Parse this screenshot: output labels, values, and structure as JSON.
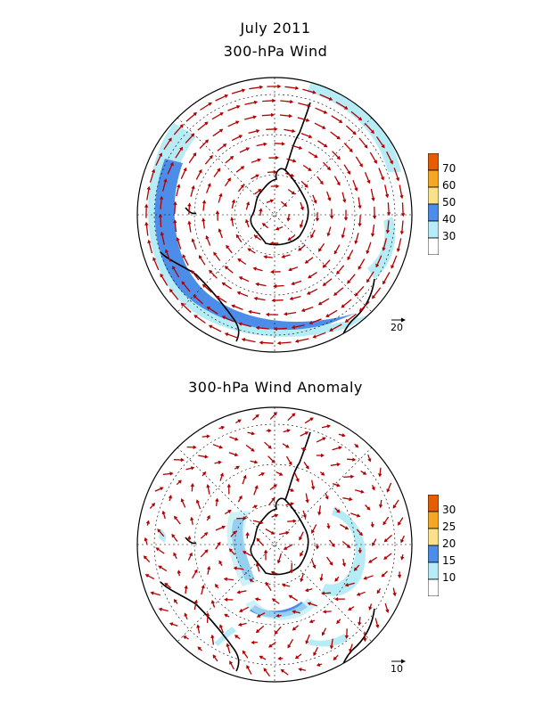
{
  "titles": {
    "date": "July 2011",
    "panel1": "300-hPa Wind",
    "panel2": "300-hPa Wind Anomaly"
  },
  "colorbars": {
    "panel1": {
      "labels": [
        "70",
        "60",
        "50",
        "40",
        "30"
      ],
      "colors": [
        "#e65c00",
        "#f5a623",
        "#fbe28a",
        "#4b8de8",
        "#b6ecf5",
        "#ffffff"
      ]
    },
    "panel2": {
      "labels": [
        "30",
        "25",
        "20",
        "15",
        "10"
      ],
      "colors": [
        "#e65c00",
        "#f5a623",
        "#fbe28a",
        "#4b8de8",
        "#b6ecf5",
        "#ffffff"
      ]
    }
  },
  "reference_vectors": {
    "panel1": "20",
    "panel2": "10"
  },
  "colors": {
    "arrow": "#b30000",
    "coast": "#000000",
    "light_shade": "#b6ecf5",
    "dark_shade": "#4b8de8"
  }
}
